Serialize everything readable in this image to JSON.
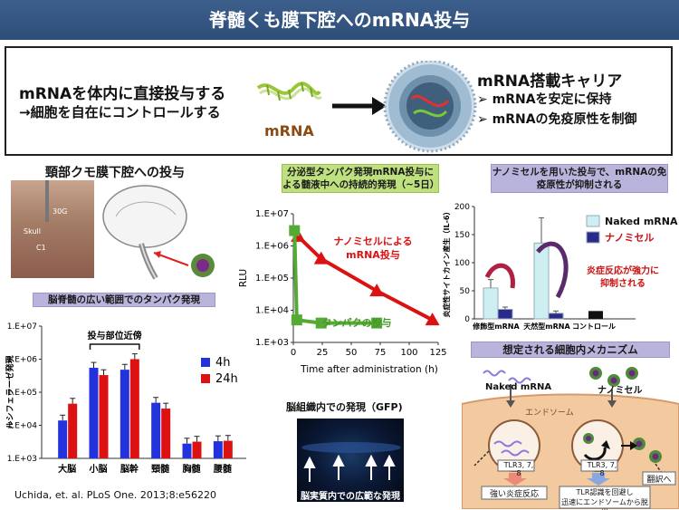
{
  "title": "脊髄くも膜下腔へのmRNA投与",
  "top": {
    "left_line1": "mRNAを体内に直接投与する",
    "left_line2": "→細胞を自在にコントロールする",
    "mrna_label": "mRNA",
    "carrier_title": "mRNA搭載キャリア",
    "bullet1": "➢  mRNAを安定に保持",
    "bullet2": "➢  mRNAの免疫原性を制御"
  },
  "injection": {
    "title": "頸部クモ膜下腔への投与",
    "label_30g": "30G",
    "label_skull": "Skull",
    "label_c1": "C1"
  },
  "panel1": {
    "header": "脳脊髄の広い範囲でのタンパク発現",
    "near_site": "投与部位近傍",
    "ylabel": "ルシフェラーゼ発現",
    "citation": "Uchida, et. al. PLoS One. 2013;8:e56220"
  },
  "panel2": {
    "header": "分泌型タンパク発現mRNA投与による髄液中への持続的発現（~5日）",
    "nano_label_1": "ナノミセルによる",
    "nano_label_2": "mRNA投与",
    "protein_label": "タンパクの投与"
  },
  "gfp": {
    "title": "脳組織内での発現（GFP)",
    "caption": "脳実質内での広範な発現"
  },
  "panel3": {
    "header": "ナノミセルを用いた投与で、mRNAの免疫原性が抑制される",
    "ylabel": "炎症性サイトカイン産生（IL-6）",
    "annotation_1": "炎症反応が強力に",
    "annotation_2": "抑制される",
    "group_labels": [
      "修飾型mRNA",
      "天然型mRNA",
      "コントロール"
    ]
  },
  "mechanism": {
    "header": "想定される細胞内メカニズム",
    "naked_label": "Naked mRNA",
    "nano_label": "ナノミセル",
    "endosome_label": "エンドソーム",
    "tlr_left": "TLR3, 7, 8",
    "tlr_right": "TLR3, 7, 8",
    "result_left": "強い炎症反応",
    "result_right_1": "TLR認識を回避し",
    "result_right_2": "迅速にエンドソームから脱出",
    "translation": "翻訳へ"
  },
  "chart_data": [
    {
      "type": "bar",
      "title": "",
      "ylabel": "ルシフェラーゼ発現",
      "ylog": true,
      "ylim": [
        1000,
        10000000
      ],
      "ytick_labels": [
        "1.E+03",
        "1.E+04",
        "1.E+05",
        "1.E+06",
        "1.E+07"
      ],
      "yticks": [
        1000,
        10000,
        100000,
        1000000,
        10000000
      ],
      "categories": [
        "大脳",
        "小脳",
        "脳幹",
        "頸髄",
        "胸髄",
        "腰髄"
      ],
      "series": [
        {
          "name": "4h",
          "color": "#2233dd",
          "values": [
            14000,
            550000,
            480000,
            48000,
            2800,
            3300
          ]
        },
        {
          "name": "24h",
          "color": "#dd1111",
          "values": [
            45000,
            330000,
            1000000,
            32000,
            3200,
            3400
          ]
        }
      ],
      "legend": "right"
    },
    {
      "type": "line",
      "title": "",
      "xlabel": "Time after administration (h)",
      "ylabel": "RLU",
      "ylog": true,
      "xlim": [
        0,
        125
      ],
      "ylim": [
        1000,
        10000000
      ],
      "xticks": [
        0,
        25,
        50,
        75,
        100,
        125
      ],
      "ytick_labels": [
        "1.E+03",
        "1.E+04",
        "1.E+05",
        "1.E+06",
        "1.E+07"
      ],
      "yticks": [
        1000,
        10000,
        100000,
        1000000,
        10000000
      ],
      "series": [
        {
          "color": "#dd1111",
          "x": [
            4,
            24,
            72,
            120
          ],
          "y": [
            2000000,
            400000,
            40000,
            5000
          ]
        },
        {
          "color": "#55aa33",
          "x": [
            1,
            3,
            24,
            72
          ],
          "y": [
            3000000,
            5000,
            4000,
            4000
          ]
        }
      ]
    },
    {
      "type": "bar",
      "title": "",
      "ylabel": "炎症性サイトカイン産生（IL-6）",
      "ylim": [
        0,
        200
      ],
      "yticks": [
        0,
        50,
        100,
        150,
        200
      ],
      "groups": [
        "修飾型mRNA",
        "天然型mRNA",
        "コントロール"
      ],
      "series": [
        {
          "name": "Naked mRNA",
          "color": "#cdeff2",
          "values": [
            55,
            135,
            null
          ]
        },
        {
          "name": "ナノミセル",
          "color": "#2a2a8a",
          "values": [
            17,
            10,
            null
          ]
        }
      ],
      "control": {
        "color": "#111111",
        "value": 14
      },
      "legend": "right"
    }
  ]
}
